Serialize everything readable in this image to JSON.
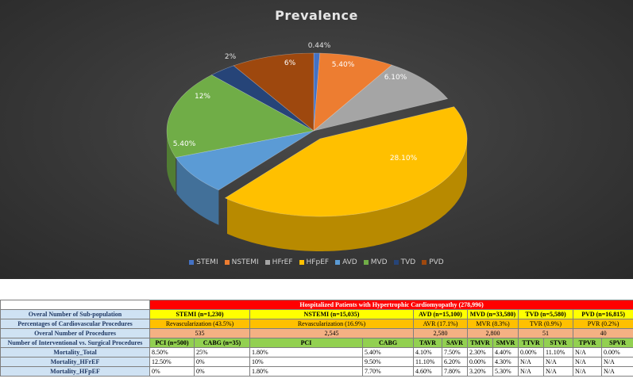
{
  "chart_data": {
    "type": "pie",
    "title": "Prevalence",
    "slices": [
      {
        "name": "STEMI",
        "value": 0.44,
        "label": "0.44%",
        "color": "#4472c4"
      },
      {
        "name": "NSTEMI",
        "value": 5.4,
        "label": "5.40%",
        "color": "#ed7d31"
      },
      {
        "name": "HFrEF",
        "value": 6.1,
        "label": "6.10%",
        "color": "#a5a5a5"
      },
      {
        "name": "HFpEF",
        "value": 28.1,
        "label": "28.10%",
        "color": "#ffc000"
      },
      {
        "name": "AVD",
        "value": 5.4,
        "label": "5.40%",
        "color": "#5b9bd5"
      },
      {
        "name": "MVD",
        "value": 12,
        "label": "12%",
        "color": "#70ad47"
      },
      {
        "name": "TVD",
        "value": 2,
        "label": "2%",
        "color": "#264478"
      },
      {
        "name": "PVD",
        "value": 6,
        "label": "6%",
        "color": "#9e480e"
      }
    ],
    "legend_position": "bottom"
  },
  "table": {
    "header": "Hospitalized Patients with Hypertrophic Cardiomyopathy (278,996)",
    "row_labels": {
      "subpop": "Overal Number of Sub-population",
      "pct": "Percentages of Cardiovascular Procedures",
      "procs": "Overal Number of Procedures",
      "interv": "Number of Interventional vs. Surgical Procedures",
      "mort_total": "Mortality_Total",
      "mort_hfref": "Mortality_HFrEF",
      "mort_hfpef": "Mortality_HFpEF"
    },
    "subpop": [
      "STEMI (n=1,230)",
      "NSTEMI (n=15,035)",
      "AVD (n=15,100)",
      "MVD (n=33,580)",
      "TVD (n=5,580)",
      "PVD (n=16,815)"
    ],
    "pct": [
      "Revascularization (43.5%)",
      "Revascularization (16.9%)",
      "AVR (17.1%)",
      "MVR (8.3%)",
      "TVR (0.9%)",
      "PVR (0.2%)"
    ],
    "procs": [
      "535",
      "2,545",
      "2,580",
      "2,800",
      "51",
      "40"
    ],
    "interv": [
      "PCI (n=500)",
      "CABG (n=35)",
      "PCI",
      "CABG",
      "TAVR",
      "SAVR",
      "TMVR",
      "SMVR",
      "TTVR",
      "STVR",
      "TPVR",
      "SPVR"
    ],
    "mort_total": [
      "8.50%",
      "25%",
      "1.80%",
      "5.40%",
      "4.10%",
      "7.50%",
      "2.30%",
      "4.40%",
      "0.00%",
      "11.10%",
      "N/A",
      "0.00%"
    ],
    "mort_hfref": [
      "12.50%",
      "0%",
      "10%",
      "9.50%",
      "11.10%",
      "6.20%",
      "0.00%",
      "4.30%",
      "N/A",
      "N/A",
      "N/A",
      "N/A"
    ],
    "mort_hfpef": [
      "0%",
      "0%",
      "1.80%",
      "7.70%",
      "4.60%",
      "7.80%",
      "3.20%",
      "5.30%",
      "N/A",
      "N/A",
      "N/A",
      "N/A"
    ]
  }
}
